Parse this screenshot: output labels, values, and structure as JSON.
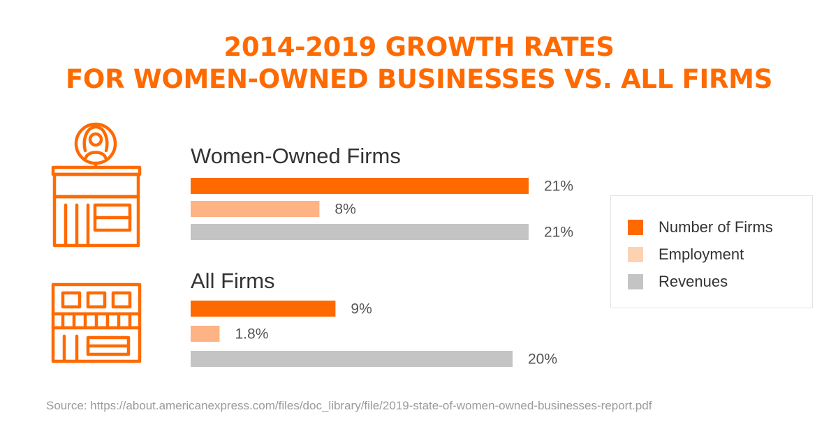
{
  "title": {
    "line1": "2014-2019 GROWTH RATES",
    "line2": "FOR WOMEN-OWNED BUSINESSES VS. ALL FIRMS"
  },
  "colors": {
    "title": "#FF6A00",
    "number_of_firms": "#FF6A00",
    "employment": "#FDB383",
    "revenues": "#C4C4C4"
  },
  "icons": {
    "women_owned": "women-owned-storefront-icon",
    "all_firms": "all-firms-storefront-icon"
  },
  "chart_data": {
    "type": "bar",
    "orientation": "horizontal",
    "categories": [
      "Women-Owned Firms",
      "All Firms"
    ],
    "series": [
      {
        "name": "Number of Firms",
        "values": [
          21,
          9
        ],
        "labels": [
          "21%",
          "9%"
        ],
        "color": "#FF6A00"
      },
      {
        "name": "Employment",
        "values": [
          8,
          1.8
        ],
        "labels": [
          "8%",
          "1.8%"
        ],
        "color": "#FDB383"
      },
      {
        "name": "Revenues",
        "values": [
          21,
          20
        ],
        "labels": [
          "21%",
          "20%"
        ],
        "color": "#C4C4C4"
      }
    ],
    "xlim": [
      0,
      21
    ],
    "unit": "%",
    "grid": false,
    "legend_position": "right"
  },
  "legend": {
    "items": [
      "Number of Firms",
      "Employment",
      "Revenues"
    ]
  },
  "source": "Source: https://about.americanexpress.com/files/doc_library/file/2019-state-of-women-owned-businesses-report.pdf"
}
